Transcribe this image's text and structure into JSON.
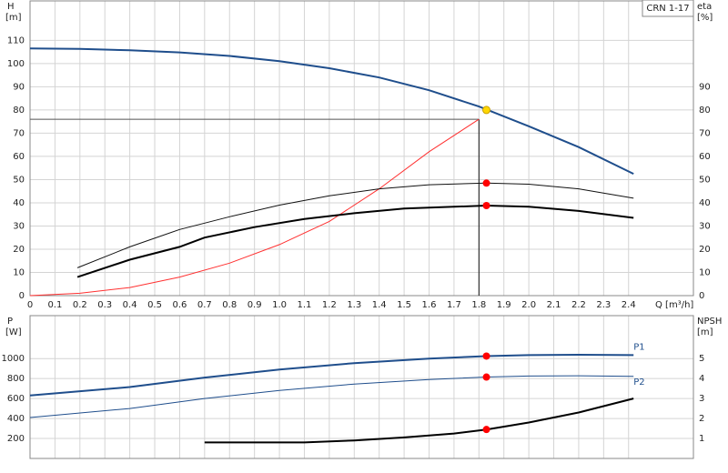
{
  "chart_data": [
    {
      "type": "line",
      "title": "CRN 1-17",
      "ylabel": "H",
      "yunit": "[m]",
      "y2label": "eta",
      "y2unit": "[%]",
      "xlabel": "Q [m³/h]",
      "xlim": [
        0,
        2.66
      ],
      "ylim": [
        0,
        127
      ],
      "y2lim": [
        0,
        127
      ],
      "grid": true,
      "xticks": [
        0,
        0.1,
        0.2,
        0.3,
        0.4,
        0.5,
        0.6,
        0.7,
        0.8,
        0.9,
        {
          "value": 1,
          "label": "1.0"
        },
        1.1,
        1.2,
        1.3,
        1.4,
        1.5,
        1.6,
        1.7,
        1.8,
        1.9,
        {
          "value": 2,
          "label": "2.0"
        },
        2.1,
        2.2,
        2.3,
        2.4
      ],
      "yticks": [
        0,
        10,
        20,
        30,
        40,
        50,
        60,
        70,
        80,
        90,
        100,
        110
      ],
      "y2ticks": [
        0,
        10,
        20,
        30,
        40,
        50,
        60,
        70,
        80,
        90
      ],
      "guide": {
        "x": 1.8,
        "y": 76
      },
      "series": [
        {
          "color": "#1f4e8c",
          "line_width": 2,
          "x": [
            0,
            0.2,
            0.4,
            0.6,
            0.8,
            1.0,
            1.2,
            1.4,
            1.6,
            1.8,
            2.0,
            2.2,
            2.42
          ],
          "values": [
            106.5,
            106.3,
            105.7,
            104.8,
            103.3,
            101,
            98,
            94,
            88.5,
            81.5,
            73,
            64,
            52.5
          ]
        },
        {
          "color": "#ff3030",
          "line_width": 1,
          "x": [
            0,
            0.2,
            0.4,
            0.6,
            0.8,
            1.0,
            1.2,
            1.4,
            1.6,
            1.8
          ],
          "values": [
            0,
            1,
            3.5,
            8,
            14,
            22,
            32,
            46,
            62,
            76
          ]
        },
        {
          "color": "#111111",
          "line_width": 1,
          "axis": "y2",
          "x": [
            0.19,
            0.4,
            0.6,
            0.8,
            1.0,
            1.2,
            1.4,
            1.6,
            1.83,
            2.0,
            2.2,
            2.42
          ],
          "values": [
            12,
            21,
            28.5,
            34,
            39,
            43,
            46,
            47.8,
            48.5,
            48,
            46,
            42
          ]
        },
        {
          "color": "#000000",
          "line_width": 2,
          "axis": "y2",
          "x": [
            0.19,
            0.4,
            0.6,
            0.7,
            0.9,
            1.1,
            1.3,
            1.5,
            1.83,
            2.0,
            2.2,
            2.42
          ],
          "values": [
            8,
            15.5,
            21,
            25,
            29.5,
            33,
            35.5,
            37.5,
            38.8,
            38.3,
            36.5,
            33.5
          ]
        },
        {
          "color": "#ffd700",
          "marker": true,
          "x": [
            1.83
          ],
          "values": [
            80
          ]
        },
        {
          "color": "#ff0000",
          "marker": true,
          "axis": "y2",
          "x": [
            1.83,
            1.83
          ],
          "values": [
            48.5,
            38.8
          ]
        }
      ]
    },
    {
      "type": "line",
      "ylabel": "P",
      "yunit": "[W]",
      "y2label": "NPSH",
      "y2unit": "[m]",
      "xlim": [
        0,
        2.66
      ],
      "ylim": [
        0,
        1430
      ],
      "y2lim": [
        0,
        7.15
      ],
      "grid": true,
      "yticks": [
        200,
        400,
        600,
        800,
        1000
      ],
      "y2ticks": [
        1,
        2,
        3,
        4,
        5
      ],
      "series": [
        {
          "name": "P1",
          "color": "#1f4e8c",
          "line_width": 2,
          "x": [
            0,
            0.4,
            0.7,
            1.0,
            1.3,
            1.6,
            1.83,
            2.0,
            2.2,
            2.42
          ],
          "values": [
            630,
            715,
            810,
            890,
            955,
            1000,
            1025,
            1035,
            1038,
            1035
          ]
        },
        {
          "name": "P2",
          "color": "#1f4e8c",
          "line_width": 1,
          "x": [
            0,
            0.4,
            0.7,
            1.0,
            1.3,
            1.6,
            1.83,
            2.0,
            2.2,
            2.42
          ],
          "values": [
            410,
            500,
            600,
            680,
            745,
            790,
            815,
            825,
            828,
            822
          ]
        },
        {
          "color": "#000000",
          "line_width": 2,
          "axis": "y2",
          "x": [
            0.7,
            1.1,
            1.3,
            1.5,
            1.7,
            1.83,
            2.0,
            2.2,
            2.42
          ],
          "values": [
            0.8,
            0.8,
            0.9,
            1.05,
            1.25,
            1.45,
            1.8,
            2.3,
            3
          ]
        },
        {
          "color": "#ff0000",
          "marker": true,
          "x": [
            1.83,
            1.83
          ],
          "values": [
            1025,
            815
          ]
        },
        {
          "color": "#ff0000",
          "marker": true,
          "axis": "y2",
          "x": [
            1.83
          ],
          "values": [
            1.45
          ]
        }
      ]
    }
  ]
}
